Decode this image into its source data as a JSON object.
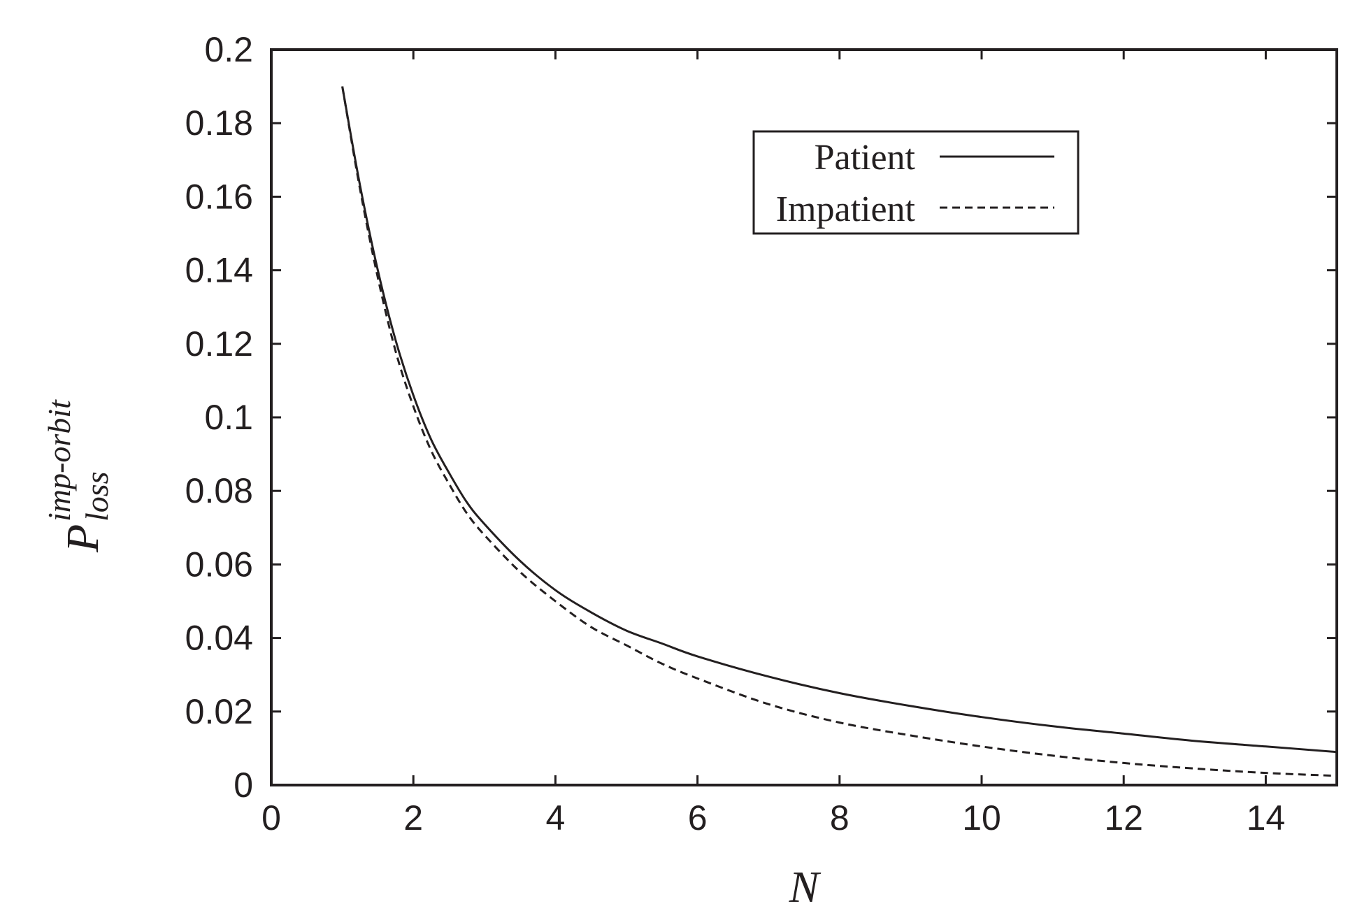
{
  "chart_data": {
    "type": "line",
    "xlabel": "N",
    "ylabel": {
      "main": "P",
      "superscript": "imp-orbit",
      "subscript": "loss"
    },
    "xlim": [
      0,
      15
    ],
    "ylim": [
      0,
      0.2
    ],
    "x_ticks": [
      0,
      2,
      4,
      6,
      8,
      10,
      12,
      14
    ],
    "x_tick_labels": [
      "0",
      "2",
      "4",
      "6",
      "8",
      "10",
      "12",
      "14"
    ],
    "y_ticks": [
      0,
      0.02,
      0.04,
      0.06,
      0.08,
      0.1,
      0.12,
      0.14,
      0.16,
      0.18,
      0.2
    ],
    "y_tick_labels": [
      "0",
      "0.02",
      "0.04",
      "0.06",
      "0.08",
      "0.1",
      "0.12",
      "0.14",
      "0.16",
      "0.18",
      "0.2"
    ],
    "grid": false,
    "legend_position": "top-right",
    "series": [
      {
        "name": "Patient",
        "style": "solid",
        "color": "#231f20",
        "x": [
          1,
          1.25,
          1.5,
          1.75,
          2,
          2.25,
          2.5,
          2.75,
          3,
          3.5,
          4,
          4.5,
          5,
          5.5,
          6,
          7,
          8,
          9,
          10,
          11,
          12,
          13,
          14,
          15
        ],
        "y": [
          0.19,
          0.163,
          0.14,
          0.121,
          0.106,
          0.094,
          0.085,
          0.077,
          0.071,
          0.061,
          0.053,
          0.047,
          0.042,
          0.0385,
          0.035,
          0.0295,
          0.025,
          0.0215,
          0.0185,
          0.016,
          0.014,
          0.012,
          0.0105,
          0.009
        ]
      },
      {
        "name": "Impatient",
        "style": "dashed",
        "color": "#231f20",
        "x": [
          1,
          1.25,
          1.5,
          1.75,
          2,
          2.25,
          2.5,
          2.75,
          3,
          3.5,
          4,
          4.5,
          5,
          5.5,
          6,
          7,
          8,
          9,
          10,
          11,
          12,
          13,
          14,
          15
        ],
        "y": [
          0.19,
          0.162,
          0.138,
          0.118,
          0.103,
          0.091,
          0.082,
          0.074,
          0.068,
          0.058,
          0.05,
          0.043,
          0.038,
          0.033,
          0.029,
          0.022,
          0.017,
          0.0135,
          0.0105,
          0.008,
          0.006,
          0.0045,
          0.0033,
          0.0025
        ]
      }
    ]
  }
}
